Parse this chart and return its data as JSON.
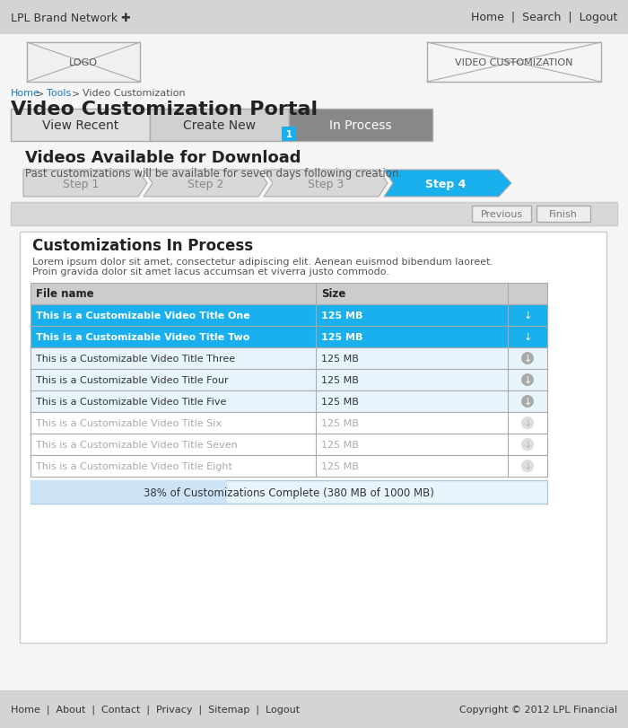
{
  "top_bar_color": "#d4d4d4",
  "top_bar_text_left": "LPL Brand Network ✚",
  "top_bar_text_right": "Home  |  Search  |  Logout",
  "breadcrumb_home": "Home",
  "breadcrumb_tools": "Tools",
  "breadcrumb_page": "Video Customization",
  "page_title": "Video Customization Portal",
  "tabs": [
    {
      "label": "View Recent",
      "color": "#e0e0e0",
      "text_color": "#333333"
    },
    {
      "label": "Create New",
      "color": "#d0d0d0",
      "text_color": "#333333"
    },
    {
      "label": "In Process",
      "color": "#888888",
      "text_color": "#ffffff"
    }
  ],
  "tab_badge": "1",
  "section_title": "Videos Available for Download",
  "section_subtitle": "Past customizations will be available for seven days following creation.",
  "steps": [
    "Step 1",
    "Step 2",
    "Step 3",
    "Step 4"
  ],
  "step_colors": [
    "#d8d8d8",
    "#d8d8d8",
    "#d8d8d8",
    "#1aafed"
  ],
  "step_text_colors": [
    "#888888",
    "#888888",
    "#888888",
    "#ffffff"
  ],
  "nav_buttons": [
    "Previous",
    "Finish"
  ],
  "section2_title": "Customizations In Process",
  "section2_lorem1": "Lorem ipsum dolor sit amet, consectetur adipiscing elit. Aenean euismod bibendum laoreet.",
  "section2_lorem2": "Proin gravida dolor sit amet lacus accumsan et viverra justo commodo.",
  "table_header_col1": "File name",
  "table_header_col2": "Size",
  "table_rows": [
    {
      "name": "This is a Customizable Video Title One",
      "size": "125 MB",
      "style": "active"
    },
    {
      "name": "This is a Customizable Video Title Two",
      "size": "125 MB",
      "style": "active"
    },
    {
      "name": "This is a Customizable Video Title Three",
      "size": "125 MB",
      "style": "available"
    },
    {
      "name": "This is a Customizable Video Title Four",
      "size": "125 MB",
      "style": "available"
    },
    {
      "name": "This is a Customizable Video Title Five",
      "size": "125 MB",
      "style": "available"
    },
    {
      "name": "This is a Customizable Video Title Six",
      "size": "125 MB",
      "style": "disabled"
    },
    {
      "name": "This is a Customizable Video Title Seven",
      "size": "125 MB",
      "style": "disabled"
    },
    {
      "name": "This is a Customizable Video Title Eight",
      "size": "125 MB",
      "style": "disabled"
    }
  ],
  "progress_text": "38% of Customizations Complete (380 MB of 1000 MB)",
  "progress_pct": 0.38,
  "footer_left": "Home  |  About  |  Contact  |  Privacy  |  Sitemap  |  Logout",
  "footer_right": "Copyright © 2012 LPL Financial",
  "bg_color": "#f0f0f0",
  "active_row_color": "#1aafed",
  "available_row_color": "#e8f4fc",
  "disabled_row_color": "#ffffff",
  "header_row_color": "#cccccc",
  "table_border_color": "#aaaaaa",
  "link_color": "#1a7abf"
}
